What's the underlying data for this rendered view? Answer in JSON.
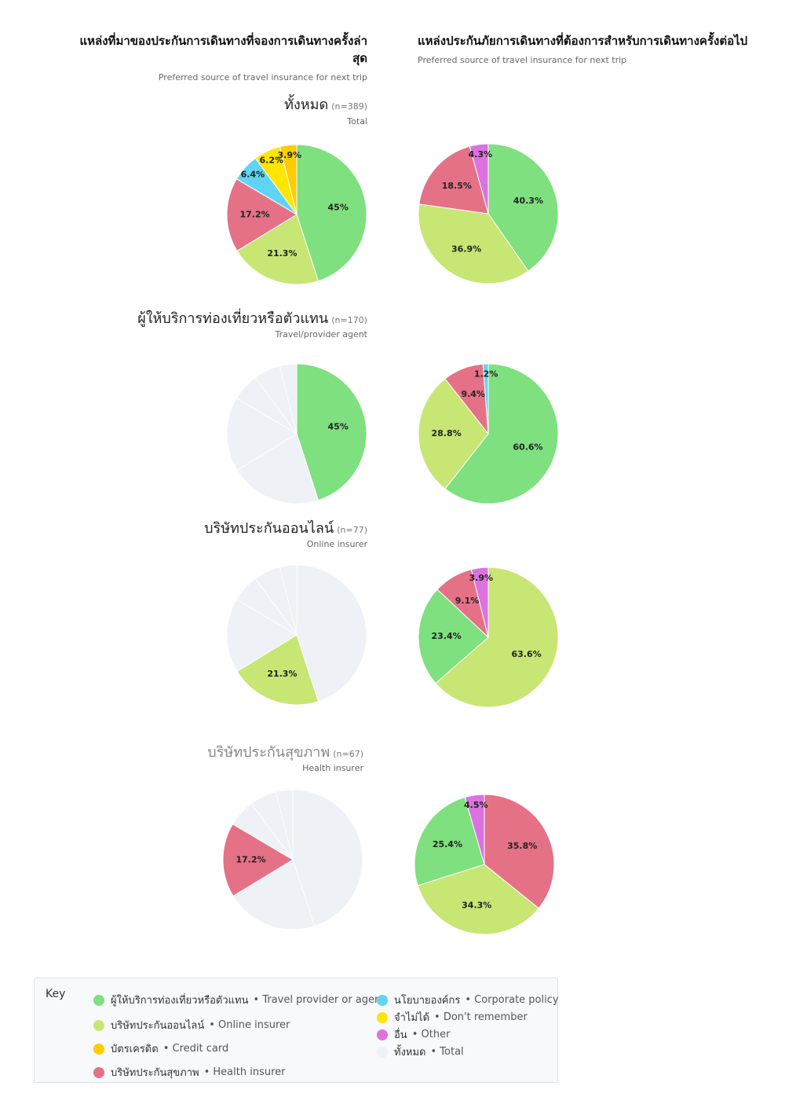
{
  "headers": {
    "left_th_line1": "แหล่งที่มาของประกันการเดินทางที่จองการเดินทางครั้งล่า",
    "left_th_line2": "สุด",
    "left_en": "Preferred source of travel insurance for next trip",
    "right_th": "แหล่งประกันภัยการเดินทางที่ต้องการสำหรับการเดินทางครั้งต่อไป",
    "right_en": "Preferred source of travel insurance for next trip"
  },
  "colors": {
    "travel_agent": "#7ee07e",
    "online_insurer": "#c8e674",
    "credit_card": "#ffcc00",
    "health_insurer": "#e57187",
    "corporate_policy": "#5fd4f5",
    "dont_remember": "#ffe600",
    "other": "#dc72e0",
    "total": "#eef1f5"
  },
  "segments": [
    {
      "title_th": "ทั้งหมด",
      "n": "(n=389)",
      "title_en": "Total"
    },
    {
      "title_th": "ผู้ให้บริการท่องเที่ยวหรือตัวแทน",
      "n": "(n=170)",
      "title_en": "Travel/provider agent"
    },
    {
      "title_th": "บริษัทประกันออนไลน์",
      "n": "(n=77)",
      "title_en": "Online insurer"
    },
    {
      "title_th": "บริษัทประกันสุขภาพ",
      "n": "(n=67)",
      "title_en": "Health insurer"
    }
  ],
  "chart_data": [
    {
      "type": "pie",
      "slices": [
        {
          "category": "travel_agent",
          "value": 45,
          "label": "45%"
        },
        {
          "category": "online_insurer",
          "value": 21.3,
          "label": "21.3%"
        },
        {
          "category": "health_insurer",
          "value": 17.2,
          "label": "17.2%"
        },
        {
          "category": "corporate_policy",
          "value": 6.4,
          "label": "6.4%"
        },
        {
          "category": "dont_remember",
          "value": 6.2,
          "label": "6.2%"
        },
        {
          "category": "credit_card",
          "value": 3.9,
          "label": "3.9%"
        }
      ]
    },
    {
      "type": "pie",
      "slices": [
        {
          "category": "travel_agent",
          "value": 40.3,
          "label": "40.3%"
        },
        {
          "category": "online_insurer",
          "value": 36.9,
          "label": "36.9%"
        },
        {
          "category": "health_insurer",
          "value": 18.5,
          "label": "18.5%"
        },
        {
          "category": "other",
          "value": 4.3,
          "label": "4.3%"
        }
      ]
    },
    {
      "type": "pie",
      "slices": [
        {
          "category": "travel_agent",
          "value": 45,
          "label": "45%"
        },
        {
          "category": "total",
          "value": 21.3,
          "label": ""
        },
        {
          "category": "total",
          "value": 17.2,
          "label": ""
        },
        {
          "category": "total",
          "value": 6.4,
          "label": ""
        },
        {
          "category": "total",
          "value": 6.2,
          "label": ""
        },
        {
          "category": "total",
          "value": 3.9,
          "label": ""
        }
      ]
    },
    {
      "type": "pie",
      "slices": [
        {
          "category": "travel_agent",
          "value": 60.6,
          "label": "60.6%"
        },
        {
          "category": "online_insurer",
          "value": 28.8,
          "label": "28.8%"
        },
        {
          "category": "health_insurer",
          "value": 9.4,
          "label": "9.4%"
        },
        {
          "category": "corporate_policy",
          "value": 1.2,
          "label": "1.2%"
        }
      ]
    },
    {
      "type": "pie",
      "slices": [
        {
          "category": "total",
          "value": 45,
          "label": ""
        },
        {
          "category": "online_insurer",
          "value": 21.3,
          "label": "21.3%"
        },
        {
          "category": "total",
          "value": 17.2,
          "label": ""
        },
        {
          "category": "total",
          "value": 6.4,
          "label": ""
        },
        {
          "category": "total",
          "value": 6.2,
          "label": ""
        },
        {
          "category": "total",
          "value": 3.9,
          "label": ""
        }
      ]
    },
    {
      "type": "pie",
      "slices": [
        {
          "category": "online_insurer",
          "value": 63.6,
          "label": "63.6%"
        },
        {
          "category": "travel_agent",
          "value": 23.4,
          "label": "23.4%"
        },
        {
          "category": "health_insurer",
          "value": 9.1,
          "label": "9.1%"
        },
        {
          "category": "other",
          "value": 3.9,
          "label": "3.9%"
        }
      ]
    },
    {
      "type": "pie",
      "slices": [
        {
          "category": "total",
          "value": 45,
          "label": ""
        },
        {
          "category": "total",
          "value": 21.3,
          "label": ""
        },
        {
          "category": "health_insurer",
          "value": 17.2,
          "label": "17.2%"
        },
        {
          "category": "total",
          "value": 6.4,
          "label": ""
        },
        {
          "category": "total",
          "value": 6.2,
          "label": ""
        },
        {
          "category": "total",
          "value": 3.9,
          "label": ""
        }
      ]
    },
    {
      "type": "pie",
      "slices": [
        {
          "category": "health_insurer",
          "value": 35.8,
          "label": "35.8%"
        },
        {
          "category": "online_insurer",
          "value": 34.3,
          "label": "34.3%"
        },
        {
          "category": "travel_agent",
          "value": 25.4,
          "label": "25.4%"
        },
        {
          "category": "other",
          "value": 4.5,
          "label": "4.5%"
        }
      ]
    }
  ],
  "key": {
    "title": "Key",
    "items": [
      {
        "category": "travel_agent",
        "th": "ผู้ให้บริการท่องเที่ยวหรือตัวแทน",
        "en": "• Travel provider or agent"
      },
      {
        "category": "online_insurer",
        "th": "บริษัทประกันออนไลน์",
        "en": "• Online insurer"
      },
      {
        "category": "credit_card",
        "th": "บัตรเครดิต",
        "en": "• Credit card"
      },
      {
        "category": "health_insurer",
        "th": "บริษัทประกันสุขภาพ",
        "en": "• Health insurer"
      },
      {
        "category": "corporate_policy",
        "th": "นโยบายองค์กร",
        "en": "• Corporate policy"
      },
      {
        "category": "dont_remember",
        "th": "จำไม่ได้",
        "en": "• Don't remember"
      },
      {
        "category": "other",
        "th": "อื่น",
        "en": "• Other"
      },
      {
        "category": "total",
        "th": "ทั้งหมด",
        "en": "• Total"
      }
    ]
  }
}
